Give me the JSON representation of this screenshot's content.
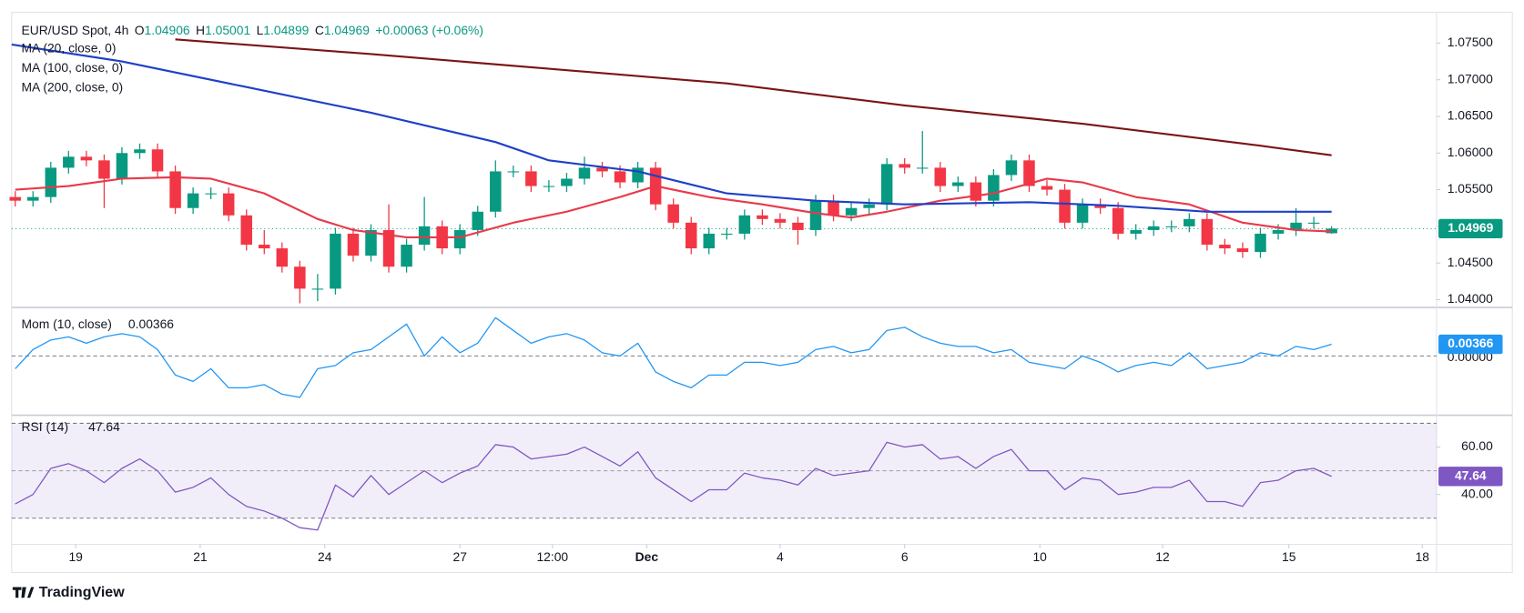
{
  "chart_data": {
    "type": "candlestick",
    "title": "EUR/USD Spot, 4h",
    "ohlc_letters": [
      "O",
      "H",
      "L",
      "C"
    ],
    "change": "+0.00063 (+0.06%)",
    "brand": "TradingView",
    "colors": {
      "up": "#089981",
      "down": "#f23645"
    },
    "xlim": [
      -0.2,
      79.9
    ],
    "xticks": [
      {
        "value": 3.4,
        "label": "19"
      },
      {
        "value": 10.4,
        "label": "21"
      },
      {
        "value": 17.4,
        "label": "24"
      },
      {
        "value": 25,
        "label": "27"
      },
      {
        "value": 30.2,
        "label": "12:00"
      },
      {
        "value": 35.5,
        "label": "Dec"
      },
      {
        "value": 43,
        "label": "4"
      },
      {
        "value": 50,
        "label": "6"
      },
      {
        "value": 57.6,
        "label": "10"
      },
      {
        "value": 64.5,
        "label": "12"
      },
      {
        "value": 71.6,
        "label": "15"
      },
      {
        "value": 79.1,
        "label": "18"
      }
    ],
    "ylim": [
      1.0392,
      1.0792
    ],
    "yticks": [
      {
        "value": 1.04,
        "label": "1.04000"
      },
      {
        "value": 1.045,
        "label": "1.04500"
      },
      {
        "value": 1.05,
        "label": "1.05000"
      },
      {
        "value": 1.055,
        "label": "1.05500"
      },
      {
        "value": 1.06,
        "label": "1.06000"
      },
      {
        "value": 1.065,
        "label": "1.06500"
      },
      {
        "value": 1.07,
        "label": "1.07000"
      },
      {
        "value": 1.075,
        "label": "1.07500"
      }
    ],
    "open": [
      1.054,
      1.0535,
      1.054,
      1.058,
      1.0595,
      1.059,
      1.0565,
      1.06,
      1.0605,
      1.0575,
      1.0525,
      1.0545,
      1.0545,
      1.0515,
      1.0475,
      1.047,
      1.0445,
      1.0415,
      1.0415,
      1.049,
      1.046,
      1.0495,
      1.0445,
      1.0475,
      1.05,
      1.047,
      1.0495,
      1.052,
      1.0575,
      1.0575,
      1.0555,
      1.0555,
      1.0565,
      1.058,
      1.0575,
      1.056,
      1.058,
      1.053,
      1.0505,
      1.047,
      1.049,
      1.049,
      1.0515,
      1.051,
      1.0505,
      1.0495,
      1.0535,
      1.0515,
      1.0525,
      1.053,
      1.0585,
      1.058,
      1.058,
      1.0555,
      1.056,
      1.0535,
      1.057,
      1.059,
      1.0555,
      1.055,
      1.0505,
      1.053,
      1.0525,
      1.049,
      1.0495,
      1.05,
      1.05,
      1.051,
      1.0475,
      1.047,
      1.0465,
      1.049,
      1.0495,
      1.0505,
      1.04906
    ],
    "high": [
      1.0548,
      1.0548,
      1.0588,
      1.0603,
      1.0603,
      1.0598,
      1.0608,
      1.0613,
      1.0613,
      1.0583,
      1.0553,
      1.0553,
      1.0553,
      1.0523,
      1.0495,
      1.0478,
      1.0453,
      1.0435,
      1.0498,
      1.0498,
      1.0503,
      1.053,
      1.0483,
      1.054,
      1.0508,
      1.0503,
      1.0528,
      1.059,
      1.0583,
      1.0583,
      1.0563,
      1.0573,
      1.0595,
      1.0588,
      1.0583,
      1.0588,
      1.0588,
      1.0538,
      1.0513,
      1.0498,
      1.0498,
      1.0523,
      1.0523,
      1.0518,
      1.0513,
      1.0543,
      1.0543,
      1.0533,
      1.0538,
      1.0593,
      1.0593,
      1.063,
      1.0588,
      1.0568,
      1.0568,
      1.0578,
      1.0598,
      1.0598,
      1.0563,
      1.0558,
      1.0538,
      1.0538,
      1.0533,
      1.0503,
      1.0508,
      1.0508,
      1.0518,
      1.0518,
      1.0483,
      1.0478,
      1.0498,
      1.0503,
      1.0525,
      1.0513,
      1.05001
    ],
    "low": [
      1.0527,
      1.0527,
      1.0532,
      1.0572,
      1.0582,
      1.0525,
      1.0557,
      1.0592,
      1.0567,
      1.0517,
      1.0517,
      1.0537,
      1.0507,
      1.0467,
      1.0462,
      1.0437,
      1.0395,
      1.0398,
      1.0407,
      1.0452,
      1.0452,
      1.0437,
      1.0437,
      1.0467,
      1.0462,
      1.0462,
      1.0487,
      1.0512,
      1.0567,
      1.0547,
      1.0547,
      1.0547,
      1.0557,
      1.0567,
      1.0552,
      1.0552,
      1.0522,
      1.0497,
      1.0462,
      1.0462,
      1.0482,
      1.0482,
      1.0502,
      1.0497,
      1.0475,
      1.0487,
      1.0507,
      1.0507,
      1.0517,
      1.0522,
      1.0572,
      1.0572,
      1.0547,
      1.0547,
      1.0527,
      1.0527,
      1.0562,
      1.0547,
      1.0542,
      1.0497,
      1.0497,
      1.0517,
      1.0482,
      1.0482,
      1.0487,
      1.0492,
      1.0492,
      1.0467,
      1.0462,
      1.0457,
      1.0457,
      1.0482,
      1.0487,
      1.0497,
      1.04899
    ],
    "close": [
      1.0535,
      1.054,
      1.058,
      1.0595,
      1.059,
      1.0565,
      1.06,
      1.0605,
      1.0575,
      1.0525,
      1.0545,
      1.0545,
      1.0515,
      1.0475,
      1.047,
      1.0445,
      1.0415,
      1.0415,
      1.049,
      1.046,
      1.0495,
      1.0445,
      1.0475,
      1.05,
      1.047,
      1.0495,
      1.052,
      1.0575,
      1.0575,
      1.0555,
      1.0555,
      1.0565,
      1.058,
      1.0575,
      1.056,
      1.058,
      1.053,
      1.0505,
      1.047,
      1.049,
      1.049,
      1.0515,
      1.051,
      1.0505,
      1.0495,
      1.0535,
      1.0515,
      1.0525,
      1.053,
      1.0585,
      1.058,
      1.058,
      1.0555,
      1.056,
      1.0535,
      1.057,
      1.059,
      1.0555,
      1.055,
      1.0505,
      1.053,
      1.0525,
      1.049,
      1.0495,
      1.05,
      1.05,
      1.051,
      1.0475,
      1.047,
      1.0465,
      1.049,
      1.0495,
      1.0505,
      1.0505,
      1.04969
    ],
    "series": [
      {
        "name": "MA (20, close, 0)",
        "color": "#e8394a",
        "x": [
          0,
          3,
          6,
          9,
          11,
          14,
          17,
          19,
          22,
          25,
          28,
          31,
          34,
          36,
          39,
          42,
          45,
          47,
          49,
          52,
          55,
          58,
          60,
          63,
          66,
          69,
          72,
          74
        ],
        "values": [
          1.055,
          1.0555,
          1.0565,
          1.0567,
          1.0565,
          1.0545,
          1.051,
          1.0495,
          1.0485,
          1.0485,
          1.0505,
          1.052,
          1.054,
          1.0555,
          1.054,
          1.053,
          1.0518,
          1.0512,
          1.052,
          1.0535,
          1.0545,
          1.0565,
          1.056,
          1.054,
          1.053,
          1.0505,
          1.0495,
          1.0493
        ]
      },
      {
        "name": "MA (100, close, 0)",
        "color": "#1e40c8",
        "x": [
          -0.2,
          6,
          13,
          20,
          27,
          30,
          35,
          40,
          45,
          50,
          57,
          62,
          67,
          74
        ],
        "values": [
          1.0748,
          1.0725,
          1.069,
          1.0655,
          1.0615,
          1.059,
          1.0575,
          1.0545,
          1.0535,
          1.053,
          1.0533,
          1.0528,
          1.052,
          1.052
        ]
      },
      {
        "name": "MA (200, close, 0)",
        "color": "#7b1416",
        "x": [
          9,
          20,
          30,
          40,
          50,
          60,
          70,
          74
        ],
        "values": [
          1.0755,
          1.0735,
          1.0715,
          1.0695,
          1.0665,
          1.064,
          1.061,
          1.0597
        ]
      }
    ],
    "momentum": {
      "name": "Mom (10, close)",
      "color": "#2196f3",
      "ylim": [
        -0.018,
        0.0146
      ],
      "yticks": [
        {
          "value": 0,
          "label": "0.00000"
        }
      ],
      "values": [
        -0.004,
        0.002,
        0.005,
        0.006,
        0.004,
        0.006,
        0.007,
        0.006,
        0.002,
        -0.006,
        -0.008,
        -0.004,
        -0.01,
        -0.01,
        -0.009,
        -0.012,
        -0.013,
        -0.004,
        -0.003,
        0.001,
        0.002,
        0.006,
        0.01,
        0.0,
        0.006,
        0.001,
        0.004,
        0.012,
        0.008,
        0.004,
        0.006,
        0.007,
        0.005,
        0.001,
        0.0,
        0.004,
        -0.005,
        -0.008,
        -0.01,
        -0.006,
        -0.006,
        -0.002,
        -0.002,
        -0.003,
        -0.002,
        0.002,
        0.003,
        0.001,
        0.002,
        0.008,
        0.009,
        0.006,
        0.004,
        0.003,
        0.003,
        0.001,
        0.002,
        -0.002,
        -0.003,
        -0.004,
        0.0,
        -0.002,
        -0.005,
        -0.003,
        -0.002,
        -0.003,
        0.001,
        -0.004,
        -0.003,
        -0.002,
        0.001,
        0.0,
        0.003,
        0.002,
        0.00366
      ]
    },
    "rsi": {
      "name": "RSI (14)",
      "color": "#7e57c2",
      "ylim": [
        21,
        73
      ],
      "band": [
        30,
        70
      ],
      "yticks": [
        {
          "value": 40,
          "label": "40.00"
        },
        {
          "value": 60,
          "label": "60.00"
        }
      ],
      "midline": 50,
      "values": [
        36,
        40,
        51,
        53,
        50,
        45,
        51,
        55,
        50,
        41,
        43,
        47,
        40,
        35,
        33,
        30,
        26,
        25,
        44,
        39,
        48,
        40,
        45,
        50,
        45,
        49,
        52,
        61,
        60,
        55,
        56,
        57,
        60,
        56,
        52,
        58,
        47,
        42,
        37,
        42,
        42,
        49,
        47,
        46,
        44,
        51,
        48,
        49,
        50,
        62,
        60,
        61,
        55,
        56,
        51,
        56,
        59,
        50,
        50,
        42,
        47,
        46,
        40,
        41,
        43,
        43,
        46,
        37,
        37,
        35,
        45,
        46,
        50,
        51,
        47.64
      ]
    }
  }
}
